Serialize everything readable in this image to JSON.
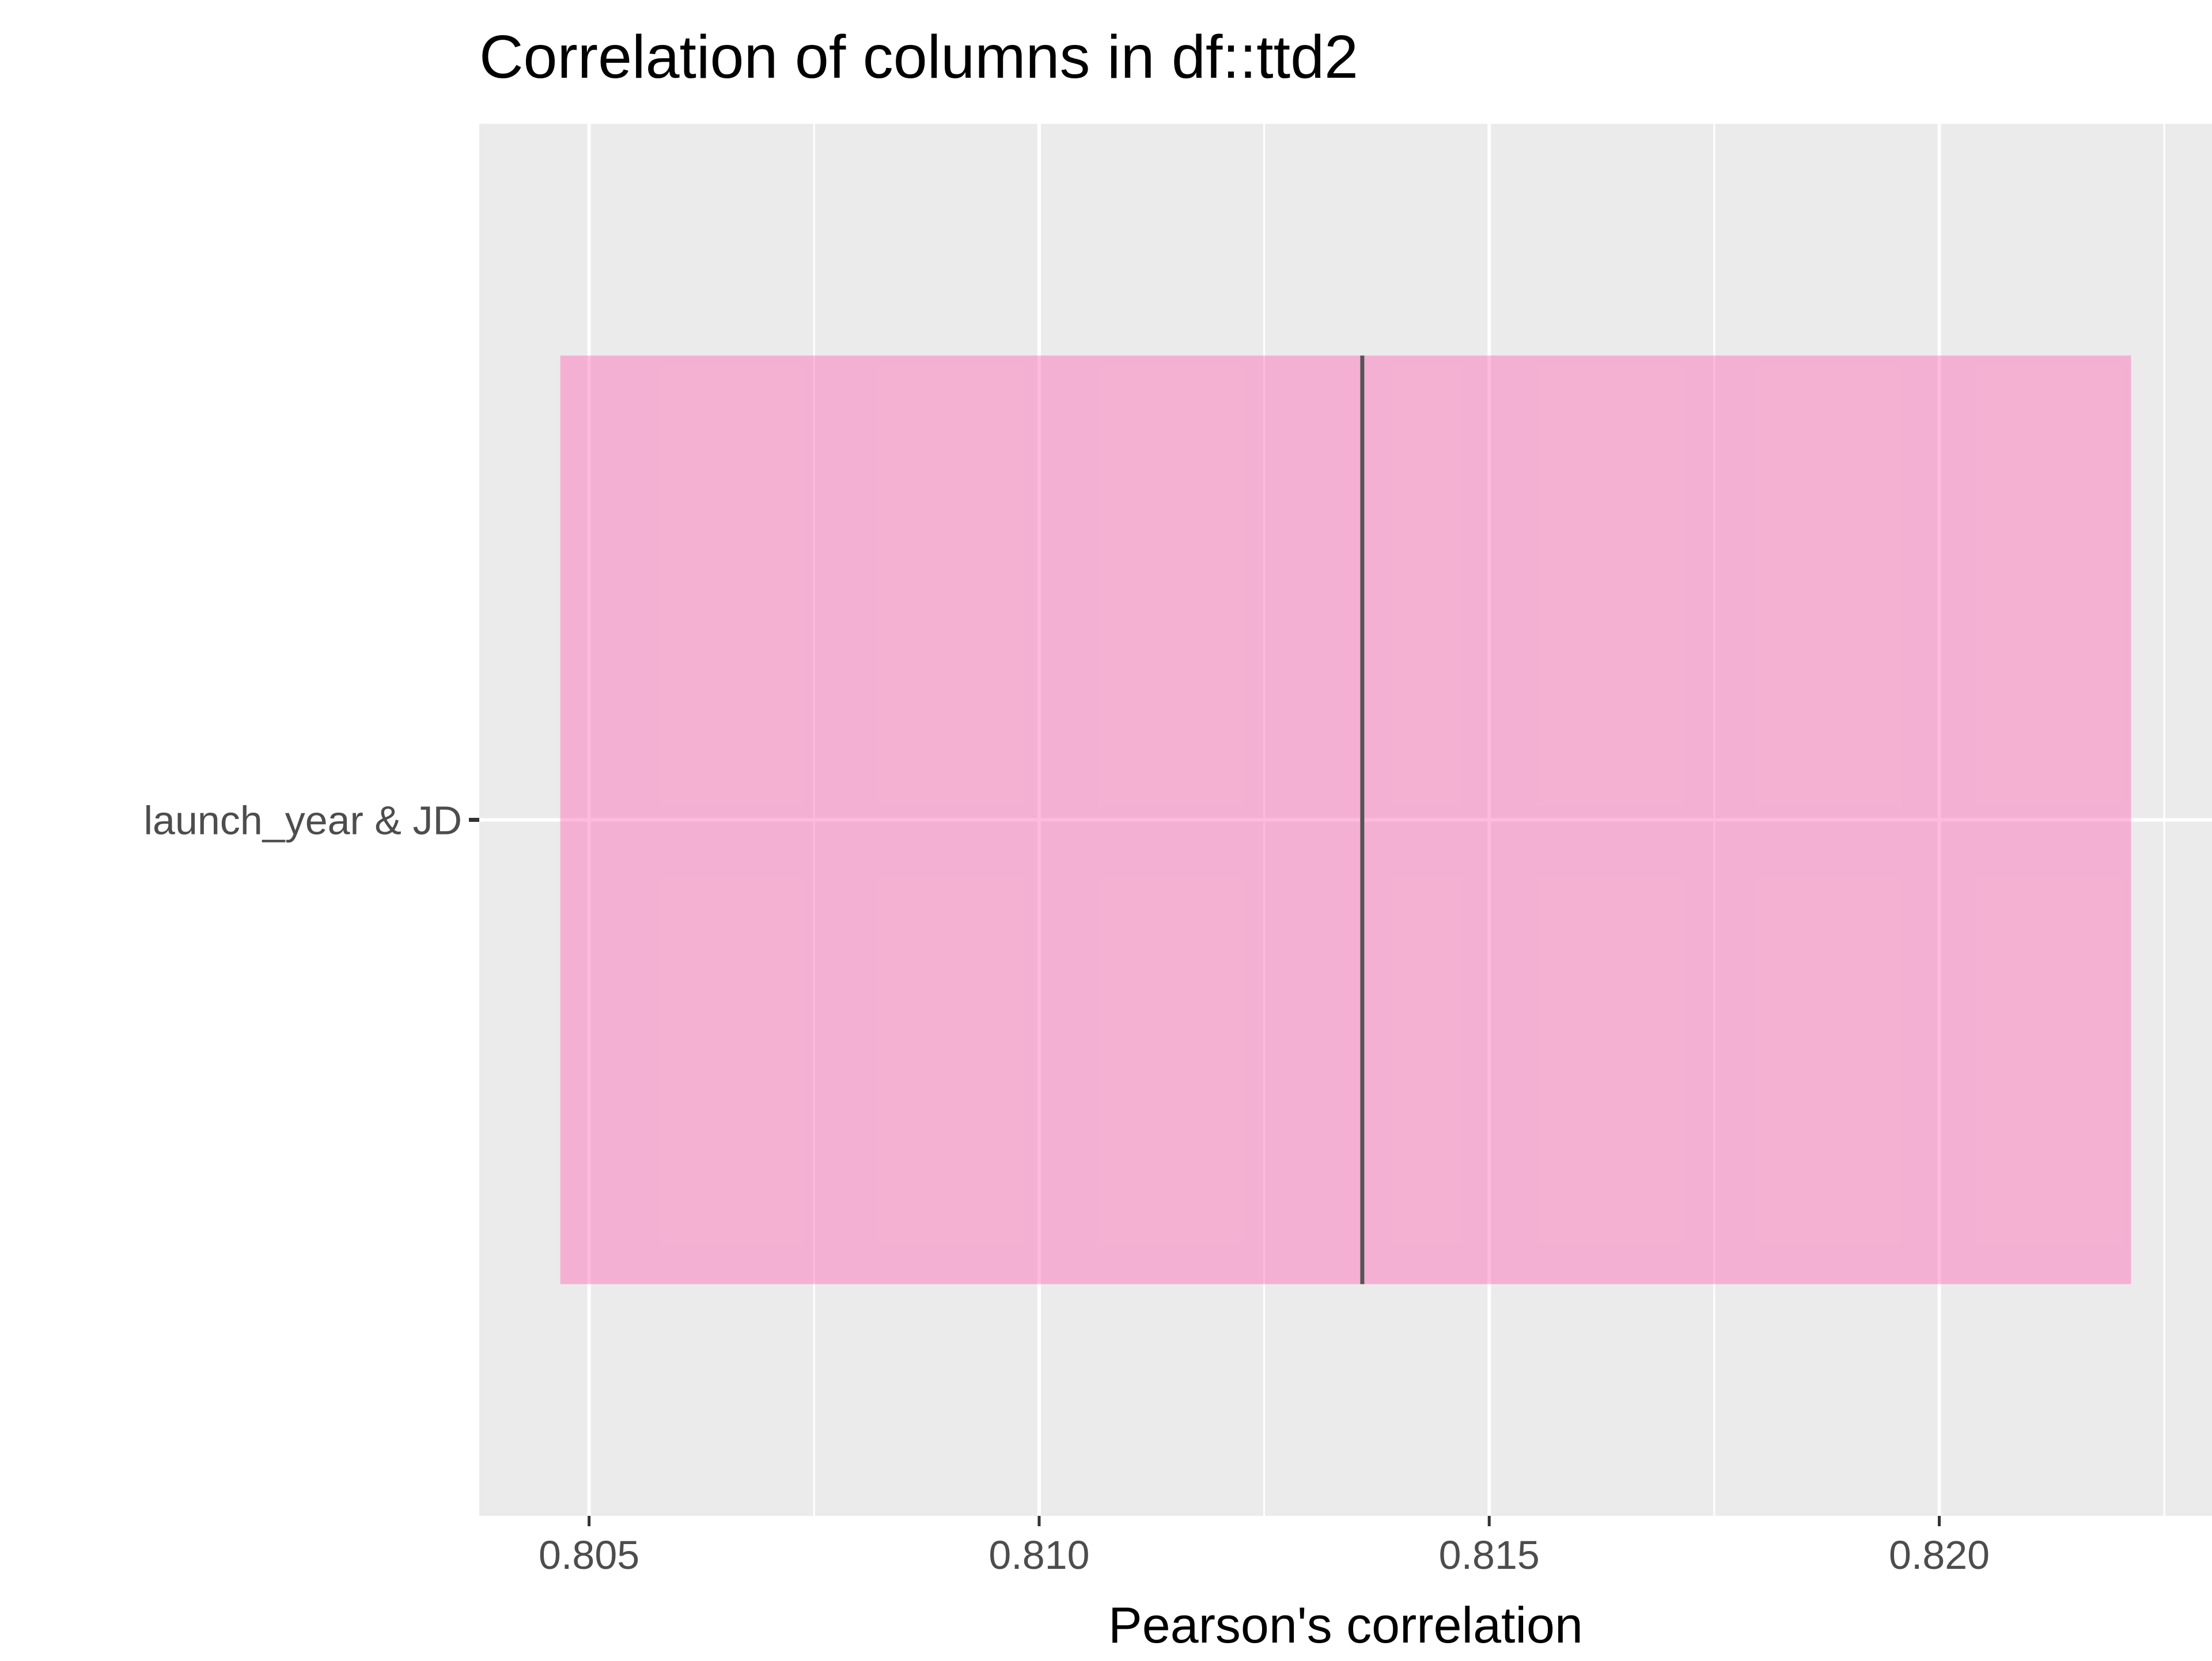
{
  "chart_data": {
    "type": "bar",
    "title": "Correlation of columns in df::ttd2",
    "xlabel": "Pearson's correlation",
    "ylabel": "",
    "categories": [
      "launch_year & JD"
    ],
    "estimate": [
      0.81359
    ],
    "ci_low": [
      0.80468
    ],
    "ci_high": [
      0.82213
    ],
    "xlim": [
      0.80378,
      0.82303
    ],
    "x_ticks": [
      0.805,
      0.81,
      0.815,
      0.82
    ],
    "x_tick_labels": [
      "0.805",
      "0.810",
      "0.815",
      "0.820"
    ],
    "x_minor_ticks": [
      0.8075,
      0.8125,
      0.8175,
      0.8225
    ],
    "grid": true,
    "colors": {
      "panel_background": "#ebebeb",
      "grid": "#ffffff",
      "bar_fill": "#ff69b4",
      "bar_alpha": 0.45,
      "estimate_line": "#555555",
      "tick_text": "#4d4d4d",
      "tick_mark": "#333333"
    }
  }
}
